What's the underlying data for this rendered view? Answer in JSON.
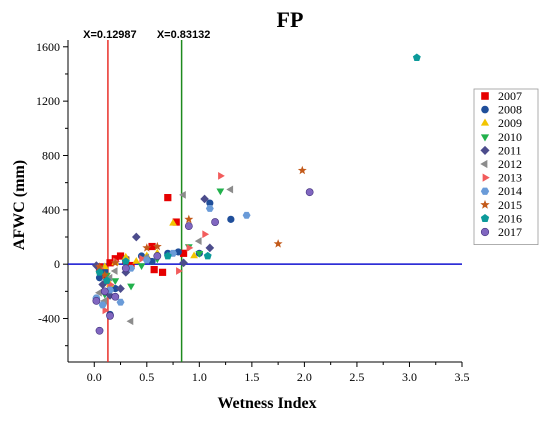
{
  "chart_data": {
    "type": "scatter",
    "title": "FP",
    "xlabel": "Wetness Index",
    "ylabel": "AFWC (mm)",
    "xlim": [
      -0.25,
      3.5
    ],
    "ylim": [
      -720,
      1650
    ],
    "xticks": [
      "0.0",
      "0.5",
      "1.0",
      "1.5",
      "2.0",
      "2.5",
      "3.0",
      "3.5"
    ],
    "yticks": [
      "-400",
      "0",
      "400",
      "800",
      "1200",
      "1600"
    ],
    "xtick_values": [
      0,
      0.5,
      1.0,
      1.5,
      2.0,
      2.5,
      3.0,
      3.5
    ],
    "ytick_values": [
      -400,
      0,
      400,
      800,
      1200,
      1600
    ],
    "legend_position": "right",
    "reference_lines": [
      {
        "orientation": "vertical",
        "x": 0.12987,
        "label": "X=0.12987",
        "color": "#e8312a"
      },
      {
        "orientation": "vertical",
        "x": 0.83132,
        "label": "X=0.83132",
        "color": "#1e8a1e"
      },
      {
        "orientation": "horizontal",
        "y": 0,
        "label": "",
        "color": "#1010d0"
      }
    ],
    "series": [
      {
        "name": "2007",
        "color": "#e60000",
        "marker": "square",
        "points": [
          [
            0.05,
            -20
          ],
          [
            0.1,
            -60
          ],
          [
            0.15,
            10
          ],
          [
            0.2,
            40
          ],
          [
            0.25,
            60
          ],
          [
            0.3,
            30
          ],
          [
            0.35,
            -10
          ],
          [
            0.55,
            130
          ],
          [
            0.57,
            -40
          ],
          [
            0.65,
            -60
          ],
          [
            0.7,
            490
          ],
          [
            0.78,
            310
          ],
          [
            0.85,
            80
          ],
          [
            0.12,
            -120
          ]
        ]
      },
      {
        "name": "2008",
        "color": "#1f4e9a",
        "marker": "circle",
        "points": [
          [
            0.05,
            -100
          ],
          [
            0.1,
            -50
          ],
          [
            0.15,
            -370
          ],
          [
            0.2,
            -180
          ],
          [
            0.3,
            40
          ],
          [
            0.45,
            60
          ],
          [
            0.55,
            20
          ],
          [
            0.7,
            80
          ],
          [
            0.8,
            90
          ],
          [
            1.0,
            80
          ],
          [
            1.1,
            450
          ],
          [
            1.3,
            330
          ],
          [
            0.02,
            -250
          ]
        ]
      },
      {
        "name": "2009",
        "color": "#f2c500",
        "marker": "triangle-up",
        "points": [
          [
            0.05,
            -50
          ],
          [
            0.1,
            -20
          ],
          [
            0.2,
            10
          ],
          [
            0.3,
            50
          ],
          [
            0.4,
            20
          ],
          [
            0.5,
            60
          ],
          [
            0.6,
            80
          ],
          [
            0.75,
            300
          ],
          [
            0.95,
            60
          ],
          [
            0.15,
            -150
          ]
        ]
      },
      {
        "name": "2010",
        "color": "#22b14c",
        "marker": "triangle-down",
        "points": [
          [
            0.05,
            -30
          ],
          [
            0.12,
            -80
          ],
          [
            0.2,
            -120
          ],
          [
            0.35,
            -160
          ],
          [
            0.45,
            -10
          ],
          [
            0.6,
            40
          ],
          [
            0.9,
            130
          ],
          [
            1.0,
            80
          ],
          [
            1.2,
            540
          ],
          [
            0.1,
            -220
          ]
        ]
      },
      {
        "name": "2011",
        "color": "#4c4c8c",
        "marker": "diamond",
        "points": [
          [
            0.02,
            -10
          ],
          [
            0.08,
            -150
          ],
          [
            0.15,
            -230
          ],
          [
            0.25,
            -180
          ],
          [
            0.4,
            200
          ],
          [
            0.5,
            40
          ],
          [
            0.85,
            10
          ],
          [
            1.05,
            480
          ],
          [
            1.1,
            120
          ],
          [
            0.3,
            -60
          ]
        ]
      },
      {
        "name": "2012",
        "color": "#8c8c8c",
        "marker": "triangle-left",
        "points": [
          [
            0.05,
            -210
          ],
          [
            0.1,
            -270
          ],
          [
            0.2,
            -50
          ],
          [
            0.35,
            -420
          ],
          [
            0.5,
            50
          ],
          [
            0.85,
            510
          ],
          [
            1.0,
            170
          ],
          [
            1.3,
            550
          ],
          [
            0.15,
            -100
          ]
        ]
      },
      {
        "name": "2013",
        "color": "#f25c5c",
        "marker": "triangle-right",
        "points": [
          [
            0.05,
            -30
          ],
          [
            0.1,
            -340
          ],
          [
            0.2,
            20
          ],
          [
            0.45,
            40
          ],
          [
            0.8,
            -50
          ],
          [
            0.9,
            120
          ],
          [
            1.05,
            220
          ],
          [
            1.2,
            650
          ],
          [
            0.15,
            -150
          ]
        ]
      },
      {
        "name": "2014",
        "color": "#6a9bd8",
        "marker": "hexagon",
        "points": [
          [
            0.02,
            -250
          ],
          [
            0.08,
            -300
          ],
          [
            0.15,
            -190
          ],
          [
            0.25,
            -280
          ],
          [
            0.5,
            30
          ],
          [
            0.75,
            80
          ],
          [
            1.1,
            410
          ],
          [
            1.45,
            360
          ],
          [
            0.35,
            -30
          ]
        ]
      },
      {
        "name": "2015",
        "color": "#c35a1a",
        "marker": "star",
        "points": [
          [
            0.05,
            -20
          ],
          [
            0.1,
            -80
          ],
          [
            0.2,
            10
          ],
          [
            0.5,
            120
          ],
          [
            0.6,
            130
          ],
          [
            0.9,
            330
          ],
          [
            1.75,
            150
          ],
          [
            1.98,
            690
          ]
        ]
      },
      {
        "name": "2016",
        "color": "#0c9a9a",
        "marker": "pentagon",
        "points": [
          [
            0.05,
            -60
          ],
          [
            0.12,
            -120
          ],
          [
            0.3,
            20
          ],
          [
            0.7,
            60
          ],
          [
            1.08,
            60
          ],
          [
            3.07,
            1520
          ]
        ]
      },
      {
        "name": "2017",
        "color": "#8066c0",
        "marker": "sphere",
        "points": [
          [
            0.02,
            -270
          ],
          [
            0.05,
            -490
          ],
          [
            0.1,
            -200
          ],
          [
            0.2,
            -240
          ],
          [
            0.3,
            -30
          ],
          [
            0.6,
            60
          ],
          [
            0.9,
            280
          ],
          [
            1.15,
            310
          ],
          [
            2.05,
            530
          ],
          [
            0.15,
            -380
          ]
        ]
      }
    ]
  }
}
